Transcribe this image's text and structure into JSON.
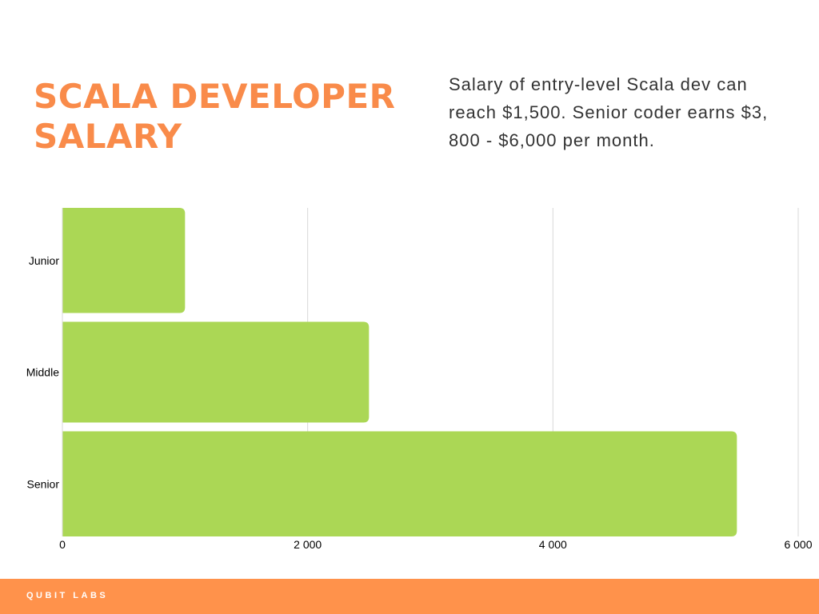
{
  "title": "SCALA DEVELOPER SALARY",
  "description": "Salary of entry-level Scala dev can reach $1,500. Senior coder earns $3, 800 - $6,000 per month.",
  "footer": {
    "brand": "QUBIT LABS"
  },
  "colors": {
    "accent": "#f98b4a",
    "footer": "#ff924b",
    "bar": "#abd755",
    "grid": "#d9d9d9",
    "text": "#333333"
  },
  "chart_data": {
    "type": "bar",
    "orientation": "horizontal",
    "categories": [
      "Junior",
      "Middle",
      "Senior"
    ],
    "values": [
      1000,
      2500,
      5500
    ],
    "xlim": [
      0,
      6000
    ],
    "xticks": [
      0,
      2000,
      4000,
      6000
    ],
    "xtick_labels": [
      "0",
      "2 000",
      "4 000",
      "6 000"
    ],
    "grid": true,
    "legend": false
  }
}
